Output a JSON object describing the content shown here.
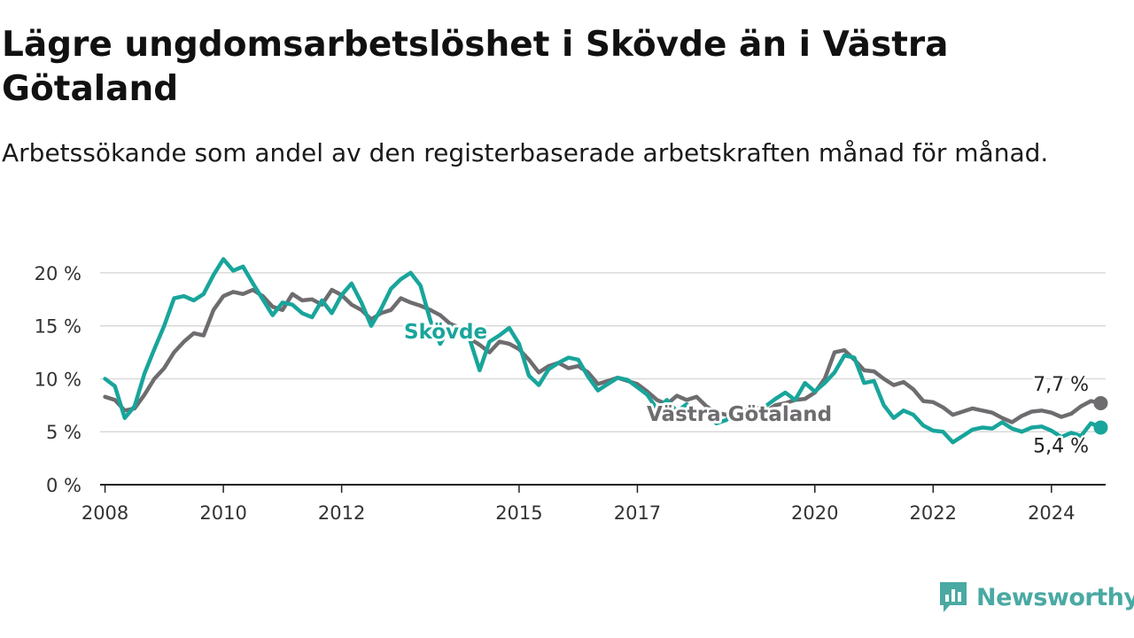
{
  "title": "Lägre ungdomsarbetslöshet i Skövde än i Västra Götaland",
  "subtitle": "Arbetssökande som andel av den registerbaserade arbetskraften månad för månad.",
  "logo": {
    "text": "Newsworthy",
    "icon": "newsworthy-logo-icon",
    "color": "#4aa9a3"
  },
  "chart_data": {
    "type": "line",
    "title": "Lägre ungdomsarbetslöshet i Skövde än i Västra Götaland",
    "subtitle": "Arbetssökande som andel av den registerbaserade arbetskraften månad för månad.",
    "xlabel": "",
    "ylabel": "",
    "xlim": [
      "2007-12",
      "2024-12"
    ],
    "ylim": [
      0,
      21.5
    ],
    "grid": "horizontal",
    "legend": "inline labels",
    "x_ticks": [
      {
        "label": "2008",
        "date": "2008-01"
      },
      {
        "label": "2010",
        "date": "2010-01"
      },
      {
        "label": "2012",
        "date": "2012-01"
      },
      {
        "label": "2015",
        "date": "2015-01"
      },
      {
        "label": "2017",
        "date": "2017-01"
      },
      {
        "label": "2020",
        "date": "2020-01"
      },
      {
        "label": "2022",
        "date": "2022-01"
      },
      {
        "label": "2024",
        "date": "2024-01"
      }
    ],
    "y_ticks": [
      {
        "label": "0 %",
        "value": 0
      },
      {
        "label": "5 %",
        "value": 5
      },
      {
        "label": "10 %",
        "value": 10
      },
      {
        "label": "15 %",
        "value": 15
      },
      {
        "label": "20 %",
        "value": 20
      }
    ],
    "series": [
      {
        "name": "Västra Götaland",
        "color": "#6e6c6f",
        "end_label": "7,7 %",
        "points": [
          [
            "2008-01",
            8.3
          ],
          [
            "2008-03",
            8.0
          ],
          [
            "2008-05",
            7.0
          ],
          [
            "2008-07",
            7.2
          ],
          [
            "2008-09",
            8.5
          ],
          [
            "2008-11",
            10.0
          ],
          [
            "2009-01",
            11.0
          ],
          [
            "2009-03",
            12.5
          ],
          [
            "2009-05",
            13.5
          ],
          [
            "2009-07",
            14.3
          ],
          [
            "2009-09",
            14.1
          ],
          [
            "2009-11",
            16.5
          ],
          [
            "2010-01",
            17.8
          ],
          [
            "2010-03",
            18.2
          ],
          [
            "2010-05",
            18.0
          ],
          [
            "2010-07",
            18.4
          ],
          [
            "2010-09",
            17.8
          ],
          [
            "2010-11",
            16.8
          ],
          [
            "2011-01",
            16.5
          ],
          [
            "2011-03",
            18.0
          ],
          [
            "2011-05",
            17.4
          ],
          [
            "2011-07",
            17.5
          ],
          [
            "2011-09",
            17.0
          ],
          [
            "2011-11",
            18.4
          ],
          [
            "2012-01",
            17.9
          ],
          [
            "2012-03",
            17.0
          ],
          [
            "2012-05",
            16.5
          ],
          [
            "2012-07",
            15.6
          ],
          [
            "2012-09",
            16.2
          ],
          [
            "2012-11",
            16.5
          ],
          [
            "2013-01",
            17.6
          ],
          [
            "2013-03",
            17.2
          ],
          [
            "2013-05",
            16.9
          ],
          [
            "2013-07",
            16.5
          ],
          [
            "2013-09",
            16.0
          ],
          [
            "2013-11",
            15.2
          ],
          [
            "2014-01",
            14.8
          ],
          [
            "2014-03",
            13.8
          ],
          [
            "2014-05",
            13.2
          ],
          [
            "2014-07",
            12.5
          ],
          [
            "2014-09",
            13.5
          ],
          [
            "2014-11",
            13.3
          ],
          [
            "2015-01",
            12.8
          ],
          [
            "2015-03",
            11.8
          ],
          [
            "2015-05",
            10.6
          ],
          [
            "2015-07",
            11.2
          ],
          [
            "2015-09",
            11.5
          ],
          [
            "2015-11",
            11.0
          ],
          [
            "2016-01",
            11.2
          ],
          [
            "2016-03",
            10.6
          ],
          [
            "2016-05",
            9.5
          ],
          [
            "2016-07",
            9.8
          ],
          [
            "2016-09",
            10.1
          ],
          [
            "2016-11",
            9.8
          ],
          [
            "2017-01",
            9.5
          ],
          [
            "2017-03",
            8.8
          ],
          [
            "2017-05",
            8.0
          ],
          [
            "2017-07",
            7.6
          ],
          [
            "2017-09",
            8.4
          ],
          [
            "2017-11",
            8.0
          ],
          [
            "2018-01",
            8.3
          ],
          [
            "2018-03",
            7.4
          ],
          [
            "2018-05",
            6.8
          ],
          [
            "2018-07",
            6.6
          ],
          [
            "2018-09",
            7.1
          ],
          [
            "2018-11",
            7.0
          ],
          [
            "2019-01",
            7.3
          ],
          [
            "2019-03",
            6.9
          ],
          [
            "2019-05",
            7.5
          ],
          [
            "2019-07",
            7.7
          ],
          [
            "2019-09",
            8.0
          ],
          [
            "2019-11",
            8.1
          ],
          [
            "2020-01",
            8.7
          ],
          [
            "2020-03",
            10.0
          ],
          [
            "2020-05",
            12.5
          ],
          [
            "2020-07",
            12.7
          ],
          [
            "2020-09",
            11.8
          ],
          [
            "2020-11",
            10.8
          ],
          [
            "2021-01",
            10.7
          ],
          [
            "2021-03",
            10.0
          ],
          [
            "2021-05",
            9.4
          ],
          [
            "2021-07",
            9.7
          ],
          [
            "2021-09",
            9.0
          ],
          [
            "2021-11",
            7.9
          ],
          [
            "2022-01",
            7.8
          ],
          [
            "2022-03",
            7.3
          ],
          [
            "2022-05",
            6.6
          ],
          [
            "2022-07",
            6.9
          ],
          [
            "2022-09",
            7.2
          ],
          [
            "2022-11",
            7.0
          ],
          [
            "2023-01",
            6.8
          ],
          [
            "2023-03",
            6.3
          ],
          [
            "2023-05",
            5.9
          ],
          [
            "2023-07",
            6.5
          ],
          [
            "2023-09",
            6.9
          ],
          [
            "2023-11",
            7.0
          ],
          [
            "2024-01",
            6.8
          ],
          [
            "2024-03",
            6.4
          ],
          [
            "2024-05",
            6.7
          ],
          [
            "2024-07",
            7.4
          ],
          [
            "2024-09",
            7.9
          ],
          [
            "2024-11",
            7.7
          ]
        ]
      },
      {
        "name": "Skövde",
        "color": "#18a59b",
        "end_label": "5,4 %",
        "points": [
          [
            "2008-01",
            10.0
          ],
          [
            "2008-03",
            9.3
          ],
          [
            "2008-05",
            6.3
          ],
          [
            "2008-07",
            7.4
          ],
          [
            "2008-09",
            10.5
          ],
          [
            "2008-11",
            12.8
          ],
          [
            "2009-01",
            15.0
          ],
          [
            "2009-03",
            17.6
          ],
          [
            "2009-05",
            17.8
          ],
          [
            "2009-07",
            17.4
          ],
          [
            "2009-09",
            18.0
          ],
          [
            "2009-11",
            19.8
          ],
          [
            "2010-01",
            21.3
          ],
          [
            "2010-03",
            20.2
          ],
          [
            "2010-05",
            20.6
          ],
          [
            "2010-07",
            19.0
          ],
          [
            "2010-09",
            17.5
          ],
          [
            "2010-11",
            16.0
          ],
          [
            "2011-01",
            17.2
          ],
          [
            "2011-03",
            17.0
          ],
          [
            "2011-05",
            16.2
          ],
          [
            "2011-07",
            15.8
          ],
          [
            "2011-09",
            17.4
          ],
          [
            "2011-11",
            16.2
          ],
          [
            "2012-01",
            17.9
          ],
          [
            "2012-03",
            19.0
          ],
          [
            "2012-05",
            17.2
          ],
          [
            "2012-07",
            15.0
          ],
          [
            "2012-09",
            16.6
          ],
          [
            "2012-11",
            18.5
          ],
          [
            "2013-01",
            19.4
          ],
          [
            "2013-03",
            20.0
          ],
          [
            "2013-05",
            18.8
          ],
          [
            "2013-07",
            15.5
          ],
          [
            "2013-09",
            13.3
          ],
          [
            "2013-11",
            15.0
          ],
          [
            "2014-01",
            14.2
          ],
          [
            "2014-03",
            13.7
          ],
          [
            "2014-05",
            10.8
          ],
          [
            "2014-07",
            13.5
          ],
          [
            "2014-09",
            14.1
          ],
          [
            "2014-11",
            14.8
          ],
          [
            "2015-01",
            13.3
          ],
          [
            "2015-03",
            10.3
          ],
          [
            "2015-05",
            9.4
          ],
          [
            "2015-07",
            10.9
          ],
          [
            "2015-09",
            11.5
          ],
          [
            "2015-11",
            12.0
          ],
          [
            "2016-01",
            11.8
          ],
          [
            "2016-03",
            10.2
          ],
          [
            "2016-05",
            8.9
          ],
          [
            "2016-07",
            9.5
          ],
          [
            "2016-09",
            10.1
          ],
          [
            "2016-11",
            9.9
          ],
          [
            "2017-01",
            9.2
          ],
          [
            "2017-03",
            8.5
          ],
          [
            "2017-05",
            7.1
          ],
          [
            "2017-07",
            8.0
          ],
          [
            "2017-09",
            6.9
          ],
          [
            "2017-11",
            7.6
          ],
          [
            "2018-01",
            6.5
          ],
          [
            "2018-03",
            6.9
          ],
          [
            "2018-05",
            5.8
          ],
          [
            "2018-07",
            6.1
          ],
          [
            "2018-09",
            7.0
          ],
          [
            "2018-11",
            6.6
          ],
          [
            "2019-01",
            7.0
          ],
          [
            "2019-03",
            7.4
          ],
          [
            "2019-05",
            8.1
          ],
          [
            "2019-07",
            8.7
          ],
          [
            "2019-09",
            8.0
          ],
          [
            "2019-11",
            9.6
          ],
          [
            "2020-01",
            8.8
          ],
          [
            "2020-03",
            9.6
          ],
          [
            "2020-05",
            10.6
          ],
          [
            "2020-07",
            12.2
          ],
          [
            "2020-09",
            12.0
          ],
          [
            "2020-11",
            9.6
          ],
          [
            "2021-01",
            9.8
          ],
          [
            "2021-03",
            7.5
          ],
          [
            "2021-05",
            6.3
          ],
          [
            "2021-07",
            7.0
          ],
          [
            "2021-09",
            6.6
          ],
          [
            "2021-11",
            5.6
          ],
          [
            "2022-01",
            5.1
          ],
          [
            "2022-03",
            5.0
          ],
          [
            "2022-05",
            4.0
          ],
          [
            "2022-07",
            4.6
          ],
          [
            "2022-09",
            5.2
          ],
          [
            "2022-11",
            5.4
          ],
          [
            "2023-01",
            5.3
          ],
          [
            "2023-03",
            5.9
          ],
          [
            "2023-05",
            5.3
          ],
          [
            "2023-07",
            5.0
          ],
          [
            "2023-09",
            5.4
          ],
          [
            "2023-11",
            5.5
          ],
          [
            "2024-01",
            5.1
          ],
          [
            "2024-03",
            4.5
          ],
          [
            "2024-05",
            4.9
          ],
          [
            "2024-07",
            4.6
          ],
          [
            "2024-09",
            5.8
          ],
          [
            "2024-11",
            5.4
          ]
        ]
      }
    ]
  }
}
